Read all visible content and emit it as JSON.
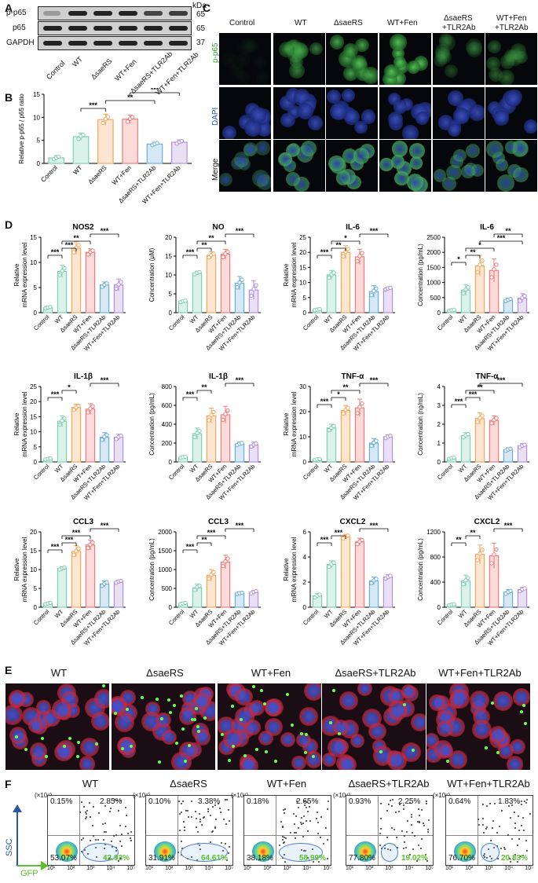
{
  "panels": {
    "A": "A",
    "B": "B",
    "C": "C",
    "D": "D",
    "E": "E",
    "F": "F"
  },
  "western": {
    "kda": "kDa",
    "rows": [
      {
        "name": "p-p65",
        "kda": "65"
      },
      {
        "name": "p65",
        "kda": "65"
      },
      {
        "name": "GAPDH",
        "kda": "37"
      }
    ],
    "lanes": [
      "Control",
      "WT",
      "ΔsaeRS",
      "WT+Fen",
      "ΔsaeRS+TLR2Ab",
      "WT+Fen+TLR2Ab"
    ]
  },
  "groups": [
    "Control",
    "WT",
    "ΔsaeRS",
    "WT+Fen",
    "ΔsaeRS+TLR2Ab",
    "WT+Fen+TLR2Ab"
  ],
  "colors": {
    "Control": "#7fd0b3",
    "WT": "#7fd0b3",
    "ΔsaeRS": "#f5a65b",
    "WT+Fen": "#ef7b7b",
    "ΔsaeRS+TLR2Ab": "#6aaed6",
    "WT+Fen+TLR2Ab": "#b48fd9",
    "gfp": "#5bbf2e",
    "ssc": "#2b56a8"
  },
  "chart_data": [
    {
      "id": "B",
      "type": "bar",
      "title": "",
      "ylabel": "Relative p-p65 / p65 ratio",
      "ylim": [
        0,
        15
      ],
      "yticks": [
        "0",
        "5",
        "10",
        "15"
      ],
      "categories": [
        "Control",
        "WT",
        "ΔsaeRS",
        "WT+Fen",
        "ΔsaeRS+TLR2Ab",
        "WT+Fen+TLR2Ab"
      ],
      "values": [
        1.2,
        5.8,
        9.5,
        9.6,
        4.2,
        4.6
      ],
      "errors": [
        0.5,
        0.8,
        1.2,
        0.9,
        0.4,
        0.5
      ],
      "sig": [
        {
          "label": "***",
          "from": 1,
          "to": 2
        },
        {
          "label": "**",
          "from": 2,
          "to": 4
        },
        {
          "label": "***",
          "from": 3,
          "to": 5
        }
      ]
    },
    {
      "id": "NOS2",
      "type": "bar",
      "title": "NOS2",
      "ylabel": "Relative mRNA expression level",
      "ylim": [
        0,
        15
      ],
      "yticks": [
        "0",
        "5",
        "10",
        "15"
      ],
      "categories": [
        "Control",
        "WT",
        "ΔsaeRS",
        "WT+Fen",
        "ΔsaeRS+TLR2Ab",
        "WT+Fen+TLR2Ab"
      ],
      "values": [
        1.0,
        8.2,
        12.8,
        12.0,
        5.5,
        5.5
      ],
      "errors": [
        0.3,
        1.2,
        1.3,
        0.7,
        0.6,
        1.2
      ],
      "sig": [
        {
          "label": "***",
          "from": 0,
          "to": 1
        },
        {
          "label": "***",
          "from": 1,
          "to": 2
        },
        {
          "label": "**",
          "from": 1,
          "to": 3
        },
        {
          "label": "***",
          "from": 3,
          "to": 5
        }
      ]
    },
    {
      "id": "NO",
      "type": "bar",
      "title": "NO",
      "ylabel": "Concentration (μM)",
      "ylim": [
        0,
        20
      ],
      "yticks": [
        "0",
        "5",
        "10",
        "15",
        "20"
      ],
      "categories": [
        "Control",
        "WT",
        "ΔsaeRS",
        "WT+Fen",
        "ΔsaeRS+TLR2Ab",
        "WT+Fen+TLR2Ab"
      ],
      "values": [
        3.0,
        10.5,
        15.2,
        15.5,
        7.8,
        6.0
      ],
      "errors": [
        0.3,
        0.5,
        0.9,
        1.3,
        1.8,
        2.5
      ],
      "sig": [
        {
          "label": "***",
          "from": 0,
          "to": 1
        },
        {
          "label": "**",
          "from": 1,
          "to": 2
        },
        {
          "label": "**",
          "from": 1,
          "to": 3
        },
        {
          "label": "***",
          "from": 3,
          "to": 5
        }
      ]
    },
    {
      "id": "IL-6",
      "type": "bar",
      "title": "IL-6",
      "ylabel": "Relative mRNA expression level",
      "ylim": [
        0,
        25
      ],
      "yticks": [
        "0",
        "5",
        "10",
        "15",
        "20",
        "25"
      ],
      "categories": [
        "Control",
        "WT",
        "ΔsaeRS",
        "WT+Fen",
        "ΔsaeRS+TLR2Ab",
        "WT+Fen+TLR2Ab"
      ],
      "values": [
        1.0,
        12.5,
        20.0,
        18.5,
        7.0,
        8.0
      ],
      "errors": [
        0.3,
        1.5,
        2.2,
        2.5,
        2.0,
        0.5
      ],
      "sig": [
        {
          "label": "***",
          "from": 0,
          "to": 1
        },
        {
          "label": "**",
          "from": 1,
          "to": 2
        },
        {
          "label": "*",
          "from": 1,
          "to": 3
        },
        {
          "label": "***",
          "from": 3,
          "to": 5
        }
      ]
    },
    {
      "id": "IL-6b",
      "type": "bar",
      "title": "IL-6",
      "ylabel": "Concentration (pg/mL)",
      "ylim": [
        0,
        2500
      ],
      "yticks": [
        "0",
        "500",
        "1000",
        "1500",
        "2000",
        "2500"
      ],
      "categories": [
        "Control",
        "WT",
        "ΔsaeRS",
        "WT+Fen",
        "ΔsaeRS+TLR2Ab",
        "WT+Fen+TLR2Ab"
      ],
      "values": [
        80,
        750,
        1550,
        1400,
        420,
        480
      ],
      "errors": [
        30,
        180,
        350,
        380,
        60,
        150
      ],
      "sig": [
        {
          "label": "*",
          "from": 0,
          "to": 1
        },
        {
          "label": "**",
          "from": 1,
          "to": 2
        },
        {
          "label": "*",
          "from": 1,
          "to": 3
        },
        {
          "label": "***",
          "from": 2,
          "to": 5
        },
        {
          "label": "**",
          "from": 3,
          "to": 5
        }
      ]
    },
    {
      "id": "IL-1β",
      "type": "bar",
      "title": "IL-1β",
      "ylabel": "Relative mRNA expression level",
      "ylim": [
        0,
        25
      ],
      "yticks": [
        "0",
        "5",
        "10",
        "15",
        "20",
        "25"
      ],
      "categories": [
        "Control",
        "WT",
        "ΔsaeRS",
        "WT+Fen",
        "ΔsaeRS+TLR2Ab",
        "WT+Fen+TLR2Ab"
      ],
      "values": [
        1.0,
        13.5,
        18.0,
        17.5,
        8.2,
        8.2
      ],
      "errors": [
        0.3,
        1.8,
        1.2,
        1.8,
        1.5,
        1.0
      ],
      "sig": [
        {
          "label": "***",
          "from": 0,
          "to": 1
        },
        {
          "label": "*",
          "from": 1,
          "to": 2
        },
        {
          "label": "***",
          "from": 3,
          "to": 5
        }
      ]
    },
    {
      "id": "IL-1βb",
      "type": "bar",
      "title": "IL-1β",
      "ylabel": "Concentration (pg/mL)",
      "ylim": [
        0,
        800
      ],
      "yticks": [
        "0",
        "200",
        "400",
        "600",
        "800"
      ],
      "categories": [
        "Control",
        "WT",
        "ΔsaeRS",
        "WT+Fen",
        "ΔsaeRS+TLR2Ab",
        "WT+Fen+TLR2Ab"
      ],
      "values": [
        50,
        300,
        490,
        500,
        190,
        180
      ],
      "errors": [
        10,
        60,
        80,
        90,
        20,
        30
      ],
      "sig": [
        {
          "label": "***",
          "from": 0,
          "to": 1
        },
        {
          "label": "**",
          "from": 1,
          "to": 2
        },
        {
          "label": "***",
          "from": 3,
          "to": 5
        }
      ]
    },
    {
      "id": "TNF-α",
      "type": "bar",
      "title": "TNF-α",
      "ylabel": "Relative mRNA expression level",
      "ylim": [
        0,
        30
      ],
      "yticks": [
        "0",
        "10",
        "20",
        "30"
      ],
      "categories": [
        "Control",
        "WT",
        "ΔsaeRS",
        "WT+Fen",
        "ΔsaeRS+TLR2Ab",
        "WT+Fen+TLR2Ab"
      ],
      "values": [
        1.0,
        13.5,
        20.5,
        21.5,
        7.5,
        10.0
      ],
      "errors": [
        0.3,
        1.5,
        2.0,
        3.5,
        1.8,
        0.8
      ],
      "sig": [
        {
          "label": "***",
          "from": 0,
          "to": 1
        },
        {
          "label": "*",
          "from": 1,
          "to": 2
        },
        {
          "label": "**",
          "from": 1,
          "to": 3
        },
        {
          "label": "***",
          "from": 3,
          "to": 5
        }
      ]
    },
    {
      "id": "TNF-αb",
      "type": "bar",
      "title": "TNF-α",
      "ylabel": "Concentration (ng/mL)",
      "ylim": [
        0,
        4
      ],
      "yticks": [
        "0",
        "1",
        "2",
        "3",
        "4"
      ],
      "categories": [
        "Control",
        "WT",
        "ΔsaeRS",
        "WT+Fen",
        "ΔsaeRS+TLR2Ab",
        "WT+Fen+TLR2Ab"
      ],
      "values": [
        0.2,
        1.4,
        2.3,
        2.2,
        0.65,
        0.85
      ],
      "errors": [
        0.05,
        0.15,
        0.3,
        0.25,
        0.1,
        0.12
      ],
      "sig": [
        {
          "label": "***",
          "from": 0,
          "to": 1
        },
        {
          "label": "***",
          "from": 1,
          "to": 2
        },
        {
          "label": "**",
          "from": 1,
          "to": 3
        },
        {
          "label": "***",
          "from": 2,
          "to": 5
        }
      ]
    },
    {
      "id": "CCL3",
      "type": "bar",
      "title": "CCL3",
      "ylabel": "Relative mRNA expression level",
      "ylim": [
        0,
        20
      ],
      "yticks": [
        "0",
        "5",
        "10",
        "15",
        "20"
      ],
      "categories": [
        "Control",
        "WT",
        "ΔsaeRS",
        "WT+Fen",
        "ΔsaeRS+TLR2Ab",
        "WT+Fen+TLR2Ab"
      ],
      "values": [
        1.0,
        10.3,
        14.8,
        16.5,
        6.2,
        6.8
      ],
      "errors": [
        0.3,
        0.5,
        1.5,
        1.3,
        0.8,
        0.4
      ],
      "sig": [
        {
          "label": "***",
          "from": 0,
          "to": 1
        },
        {
          "label": "***",
          "from": 1,
          "to": 2
        },
        {
          "label": "***",
          "from": 1,
          "to": 3
        },
        {
          "label": "***",
          "from": 3,
          "to": 5
        }
      ]
    },
    {
      "id": "CCL3b",
      "type": "bar",
      "title": "CCL3",
      "ylabel": "Concentration (pg/mL)",
      "ylim": [
        0,
        2000
      ],
      "yticks": [
        "0",
        "500",
        "1000",
        "1500",
        "2000"
      ],
      "categories": [
        "Control",
        "WT",
        "ΔsaeRS",
        "WT+Fen",
        "ΔsaeRS+TLR2Ab",
        "WT+Fen+TLR2Ab"
      ],
      "values": [
        100,
        520,
        850,
        1200,
        370,
        400
      ],
      "errors": [
        30,
        100,
        150,
        180,
        30,
        50
      ],
      "sig": [
        {
          "label": "***",
          "from": 0,
          "to": 1
        },
        {
          "label": "**",
          "from": 1,
          "to": 2
        },
        {
          "label": "***",
          "from": 1,
          "to": 3
        },
        {
          "label": "***",
          "from": 3,
          "to": 5
        }
      ]
    },
    {
      "id": "CXCL2",
      "type": "bar",
      "title": "CXCL2",
      "ylabel": "Relative mRNA expression level",
      "ylim": [
        0,
        6
      ],
      "yticks": [
        "0",
        "2",
        "4",
        "6"
      ],
      "categories": [
        "Control",
        "WT",
        "ΔsaeRS",
        "WT+Fen",
        "ΔsaeRS+TLR2Ab",
        "WT+Fen+TLR2Ab"
      ],
      "values": [
        0.9,
        3.4,
        5.6,
        5.2,
        2.1,
        2.4
      ],
      "errors": [
        0.2,
        0.3,
        0.2,
        0.3,
        0.3,
        0.2
      ],
      "sig": [
        {
          "label": "***",
          "from": 0,
          "to": 1
        },
        {
          "label": "***",
          "from": 1,
          "to": 2
        },
        {
          "label": "***",
          "from": 3,
          "to": 5
        }
      ]
    },
    {
      "id": "CXCL2b",
      "type": "bar",
      "title": "CXCL2",
      "ylabel": "Concentration (pg/mL)",
      "ylim": [
        0,
        1200
      ],
      "yticks": [
        "0",
        "400",
        "800",
        "1200"
      ],
      "categories": [
        "Control",
        "WT",
        "ΔsaeRS",
        "WT+Fen",
        "ΔsaeRS+TLR2Ab",
        "WT+Fen+TLR2Ab"
      ],
      "values": [
        40,
        420,
        840,
        820,
        240,
        280
      ],
      "errors": [
        15,
        90,
        150,
        200,
        40,
        40
      ],
      "sig": [
        {
          "label": "**",
          "from": 0,
          "to": 1
        },
        {
          "label": "**",
          "from": 1,
          "to": 2
        },
        {
          "label": "***",
          "from": 3,
          "to": 5
        }
      ]
    }
  ],
  "panelC": {
    "columns": [
      "Control",
      "WT",
      "ΔsaeRS",
      "WT+Fen",
      "ΔsaeRS\n+TLR2Ab",
      "WT+Fen\n+TLR2Ab"
    ],
    "col1": "Control",
    "col2": "WT",
    "col3": "ΔsaeRS",
    "col4": "WT+Fen",
    "col5a": "ΔsaeRS",
    "col5b": "+TLR2Ab",
    "col6a": "WT+Fen",
    "col6b": "+TLR2Ab",
    "rows": [
      "p-p65",
      "DAPI",
      "Merge"
    ]
  },
  "panelE": {
    "titles": [
      "WT",
      "ΔsaeRS",
      "WT+Fen",
      "ΔsaeRS+TLR2Ab",
      "WT+Fen+TLR2Ab"
    ]
  },
  "panelF": {
    "titles": [
      "WT",
      "ΔsaeRS",
      "WT+Fen",
      "ΔsaeRS+TLR2Ab",
      "WT+Fen+TLR2Ab"
    ],
    "ssc": "SSC",
    "gfp": "GFP",
    "axis_mult": "(×10⁴)",
    "ticks_x": [
      "10¹",
      "10²",
      "10³",
      "10⁴",
      "10⁵"
    ],
    "quadrants": [
      {
        "ul": "0.15%",
        "ur": "2.85%",
        "ll": "53.07%",
        "lr": "43.93%"
      },
      {
        "ul": "0.10%",
        "ur": "3.38%",
        "ll": "31.91%",
        "lr": "64.61%"
      },
      {
        "ul": "0.18%",
        "ur": "2.65%",
        "ll": "38.18%",
        "lr": "58.99%"
      },
      {
        "ul": "0.93%",
        "ur": "2.25%",
        "ll": "77.80%",
        "lr": "19.02%"
      },
      {
        "ul": "0.64%",
        "ur": "1.83%",
        "ll": "76.70%",
        "lr": "20.83%"
      }
    ]
  }
}
